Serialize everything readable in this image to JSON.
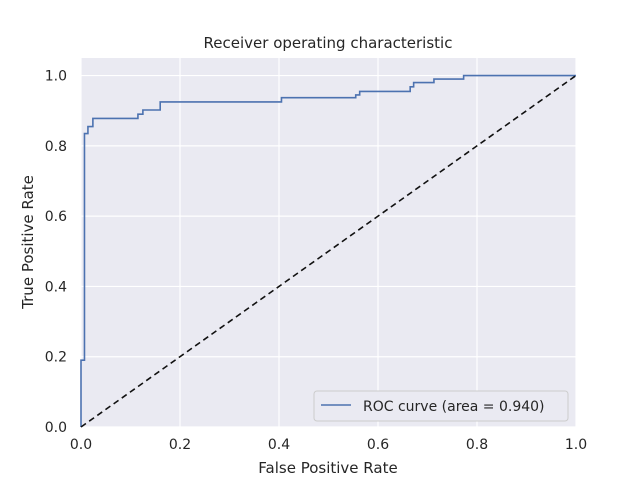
{
  "chart_data": {
    "type": "line",
    "title": "Receiver operating characteristic",
    "xlabel": "False Positive Rate",
    "ylabel": "True Positive Rate",
    "xlim": [
      0.0,
      1.0
    ],
    "ylim": [
      0.0,
      1.05
    ],
    "xticks": [
      "0.0",
      "0.2",
      "0.4",
      "0.6",
      "0.8",
      "1.0"
    ],
    "yticks": [
      "0.0",
      "0.2",
      "0.4",
      "0.6",
      "0.8",
      "1.0"
    ],
    "grid": true,
    "legend_position": "lower-right",
    "series": [
      {
        "name": "ROC curve (area = 0.940)",
        "color": "#4c72b0",
        "style": "solid",
        "step": true,
        "x": [
          0.0,
          0.0,
          0.007,
          0.007,
          0.014,
          0.014,
          0.024,
          0.024,
          0.115,
          0.115,
          0.125,
          0.125,
          0.16,
          0.16,
          0.405,
          0.405,
          0.555,
          0.555,
          0.563,
          0.563,
          0.665,
          0.665,
          0.672,
          0.672,
          0.713,
          0.713,
          0.773,
          0.773,
          1.0
        ],
        "y": [
          0.0,
          0.19,
          0.19,
          0.835,
          0.835,
          0.855,
          0.855,
          0.878,
          0.878,
          0.89,
          0.89,
          0.902,
          0.902,
          0.925,
          0.925,
          0.937,
          0.937,
          0.945,
          0.945,
          0.955,
          0.955,
          0.968,
          0.968,
          0.98,
          0.98,
          0.99,
          0.99,
          1.0,
          1.0
        ]
      },
      {
        "name": "",
        "color": "#111111",
        "style": "dashed",
        "x": [
          0.0,
          1.0
        ],
        "y": [
          0.0,
          1.0
        ]
      }
    ]
  },
  "colors": {
    "plot_background": "#eaeaf2",
    "grid": "#ffffff",
    "text": "#262626"
  }
}
